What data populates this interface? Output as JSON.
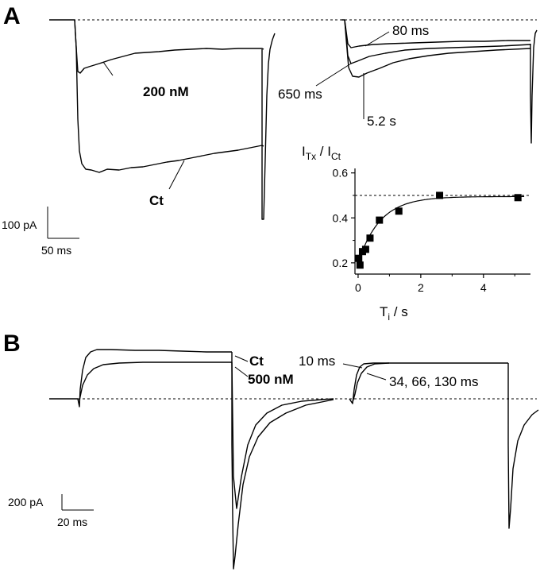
{
  "panels": {
    "a": {
      "letter": "A",
      "labels": {
        "nm200": "200 nM",
        "ct": "Ct",
        "t80": "80 ms",
        "t650": "650 ms",
        "t52": "5.2 s"
      },
      "scalebar": {
        "y_label": "100 pA",
        "x_label": "50 ms"
      }
    },
    "b": {
      "letter": "B",
      "labels": {
        "ct": "Ct",
        "nm500": "500 nM",
        "t10": "10 ms",
        "tmulti": "34, 66, 130 ms"
      },
      "scalebar": {
        "y_label": "200 pA",
        "x_label": "20 ms"
      }
    }
  },
  "chart_data": [
    {
      "type": "scatter",
      "title": "",
      "ylabel_main": "I",
      "ylabel_sub1": "Tx",
      "ylabel_sep": " / I",
      "ylabel_sub2": "Ct",
      "xlabel_main": "T",
      "xlabel_sub": "i",
      "xlabel_unit": " / s",
      "xlim": [
        -0.1,
        5.5
      ],
      "ylim": [
        0.15,
        0.62
      ],
      "x_ticks": [
        0,
        2,
        4
      ],
      "y_ticks": [
        0.2,
        0.4,
        0.6
      ],
      "x_tick_labels": [
        "0",
        "2",
        "4"
      ],
      "y_tick_labels": [
        "0.2",
        "0.4",
        "0.6"
      ],
      "points": [
        {
          "x": 0.02,
          "y": 0.22
        },
        {
          "x": 0.06,
          "y": 0.19
        },
        {
          "x": 0.14,
          "y": 0.25
        },
        {
          "x": 0.24,
          "y": 0.26
        },
        {
          "x": 0.38,
          "y": 0.31
        },
        {
          "x": 0.68,
          "y": 0.39
        },
        {
          "x": 1.3,
          "y": 0.43
        },
        {
          "x": 2.6,
          "y": 0.5
        },
        {
          "x": 5.1,
          "y": 0.49
        }
      ],
      "fit": {
        "type": "exponential",
        "y0": 0.2,
        "plateau": 0.495,
        "tau": 0.7
      },
      "reference_line_y": 0.5,
      "grid": false
    }
  ]
}
